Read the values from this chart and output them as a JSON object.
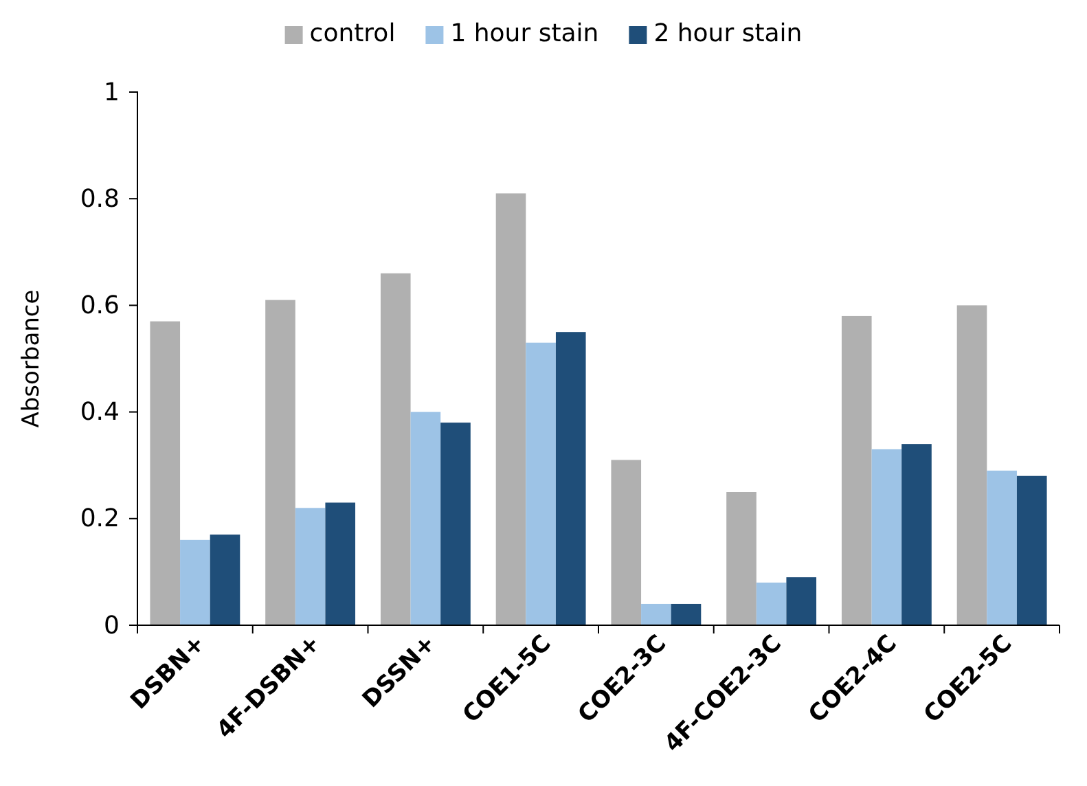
{
  "chart_data": {
    "type": "bar",
    "ylabel": "Absorbance",
    "categories": [
      "DSBN+",
      "4F-DSBN+",
      "DSSN+",
      "COE1-5C",
      "COE2-3C",
      "4F-COE2-3C",
      "COE2-4C",
      "COE2-5C"
    ],
    "series": [
      {
        "name": "control",
        "color": "#b0b0b0",
        "values": [
          0.57,
          0.61,
          0.66,
          0.81,
          0.31,
          0.25,
          0.58,
          0.6
        ]
      },
      {
        "name": "1 hour stain",
        "color": "#9dc3e6",
        "values": [
          0.16,
          0.22,
          0.4,
          0.53,
          0.04,
          0.08,
          0.33,
          0.29
        ]
      },
      {
        "name": "2 hour stain",
        "color": "#1f4e79",
        "values": [
          0.17,
          0.23,
          0.38,
          0.55,
          0.04,
          0.09,
          0.34,
          0.28
        ]
      }
    ],
    "ylim": [
      0,
      1
    ],
    "yticks": [
      0,
      0.2,
      0.4,
      0.6,
      0.8,
      1
    ],
    "grid": false,
    "legend": "top"
  }
}
